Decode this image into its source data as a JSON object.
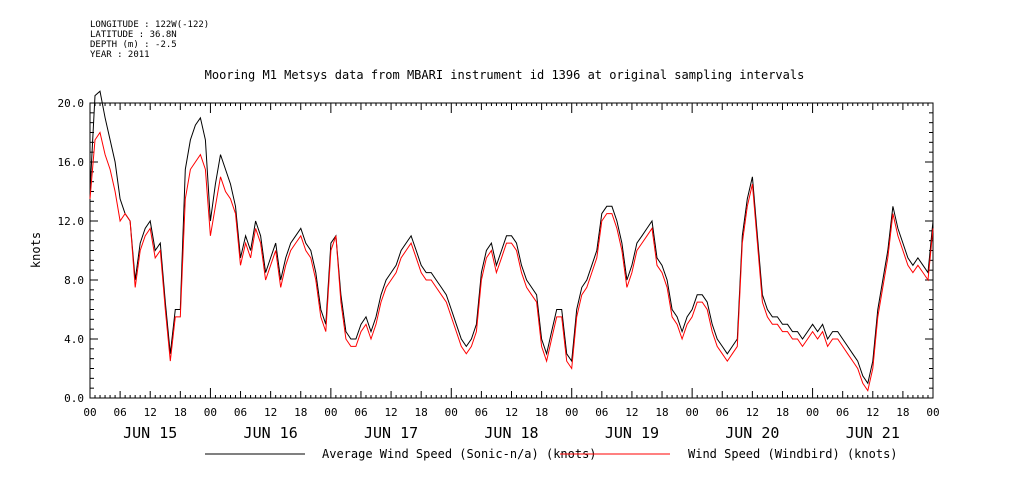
{
  "meta": {
    "longitude": "LONGITUDE : 122W(-122)",
    "latitude": "LATITUDE : 36.8N",
    "depth": "DEPTH (m) : -2.5",
    "year": "YEAR : 2011"
  },
  "chart_data": {
    "type": "line",
    "title": "Mooring M1 Metsys data from MBARI instrument id 1396 at original sampling intervals",
    "ylabel": "knots",
    "xlabel": "",
    "ylim": [
      0,
      20.0
    ],
    "xlim_hours": [
      0,
      168
    ],
    "yticks": [
      "0.0",
      "4.0",
      "8.0",
      "12.0",
      "16.0",
      "20.0"
    ],
    "xtick_hours": [
      "00",
      "06",
      "12",
      "18",
      "00",
      "06",
      "12",
      "18",
      "00",
      "06",
      "12",
      "18",
      "00",
      "06",
      "12",
      "18",
      "00",
      "06",
      "12",
      "18",
      "00",
      "06",
      "12",
      "18",
      "00",
      "06",
      "12",
      "18",
      "00"
    ],
    "days": [
      "JUN 15",
      "JUN 16",
      "JUN 17",
      "JUN 18",
      "JUN 19",
      "JUN 20",
      "JUN 21"
    ],
    "grid": false,
    "legend_position": "bottom",
    "series": [
      {
        "name": "Average Wind Speed (Sonic-n/a) (knots)",
        "color": "#000000",
        "x": [
          0,
          1,
          2,
          3,
          4,
          5,
          6,
          7,
          8,
          9,
          10,
          11,
          12,
          13,
          14,
          15,
          16,
          17,
          18,
          19,
          20,
          21,
          22,
          23,
          24,
          25,
          26,
          27,
          28,
          29,
          30,
          31,
          32,
          33,
          34,
          35,
          36,
          37,
          38,
          39,
          40,
          41,
          42,
          43,
          44,
          45,
          46,
          47,
          48,
          49,
          50,
          51,
          52,
          53,
          54,
          55,
          56,
          57,
          58,
          59,
          60,
          61,
          62,
          63,
          64,
          65,
          66,
          67,
          68,
          69,
          70,
          71,
          72,
          73,
          74,
          75,
          76,
          77,
          78,
          79,
          80,
          81,
          82,
          83,
          84,
          85,
          86,
          87,
          88,
          89,
          90,
          91,
          92,
          93,
          94,
          95,
          96,
          97,
          98,
          99,
          100,
          101,
          102,
          103,
          104,
          105,
          106,
          107,
          108,
          109,
          110,
          111,
          112,
          113,
          114,
          115,
          116,
          117,
          118,
          119,
          120,
          121,
          122,
          123,
          124,
          125,
          126,
          127,
          128,
          129,
          130,
          131,
          132,
          133,
          134,
          135,
          136,
          137,
          138,
          139,
          140,
          141,
          142,
          143,
          144,
          145,
          146,
          147,
          148,
          149,
          150,
          151,
          152,
          153,
          154,
          155,
          156,
          157,
          158,
          159,
          160,
          161,
          162,
          163,
          164,
          165,
          166,
          167,
          168
        ],
        "values": [
          14.0,
          20.5,
          20.8,
          19.0,
          17.5,
          16.0,
          13.5,
          12.5,
          12.0,
          8.0,
          10.5,
          11.5,
          12.0,
          10.0,
          10.5,
          6.5,
          3.0,
          6.0,
          6.0,
          15.5,
          17.5,
          18.5,
          19.0,
          17.5,
          12.0,
          14.5,
          16.5,
          15.5,
          14.5,
          13.0,
          9.5,
          11.0,
          10.0,
          12.0,
          11.0,
          8.5,
          9.5,
          10.5,
          8.0,
          9.5,
          10.5,
          11.0,
          11.5,
          10.5,
          10.0,
          8.5,
          6.0,
          5.0,
          10.5,
          11.0,
          7.0,
          4.5,
          4.0,
          4.0,
          5.0,
          5.5,
          4.5,
          5.5,
          7.0,
          8.0,
          8.5,
          9.0,
          10.0,
          10.5,
          11.0,
          10.0,
          9.0,
          8.5,
          8.5,
          8.0,
          7.5,
          7.0,
          6.0,
          5.0,
          4.0,
          3.5,
          4.0,
          5.0,
          8.5,
          10.0,
          10.5,
          9.0,
          10.0,
          11.0,
          11.0,
          10.5,
          9.0,
          8.0,
          7.5,
          7.0,
          4.0,
          3.0,
          4.5,
          6.0,
          6.0,
          3.0,
          2.5,
          6.0,
          7.5,
          8.0,
          9.0,
          10.0,
          12.5,
          13.0,
          13.0,
          12.0,
          10.5,
          8.0,
          9.0,
          10.5,
          11.0,
          11.5,
          12.0,
          9.5,
          9.0,
          8.0,
          6.0,
          5.5,
          4.5,
          5.5,
          6.0,
          7.0,
          7.0,
          6.5,
          5.0,
          4.0,
          3.5,
          3.0,
          3.5,
          4.0,
          11.0,
          13.5,
          15.0,
          11.0,
          7.0,
          6.0,
          5.5,
          5.5,
          5.0,
          5.0,
          4.5,
          4.5,
          4.0,
          4.5,
          5.0,
          4.5,
          5.0,
          4.0,
          4.5,
          4.5,
          4.0,
          3.5,
          3.0,
          2.5,
          1.5,
          1.0,
          2.5,
          6.0,
          8.0,
          10.0,
          13.0,
          11.5,
          10.5,
          9.5,
          9.0,
          9.5,
          9.0,
          8.5,
          12.0
        ]
      },
      {
        "name": "Wind Speed (Windbird) (knots)",
        "color": "#ff0000",
        "x": [
          0,
          1,
          2,
          3,
          4,
          5,
          6,
          7,
          8,
          9,
          10,
          11,
          12,
          13,
          14,
          15,
          16,
          17,
          18,
          19,
          20,
          21,
          22,
          23,
          24,
          25,
          26,
          27,
          28,
          29,
          30,
          31,
          32,
          33,
          34,
          35,
          36,
          37,
          38,
          39,
          40,
          41,
          42,
          43,
          44,
          45,
          46,
          47,
          48,
          49,
          50,
          51,
          52,
          53,
          54,
          55,
          56,
          57,
          58,
          59,
          60,
          61,
          62,
          63,
          64,
          65,
          66,
          67,
          68,
          69,
          70,
          71,
          72,
          73,
          74,
          75,
          76,
          77,
          78,
          79,
          80,
          81,
          82,
          83,
          84,
          85,
          86,
          87,
          88,
          89,
          90,
          91,
          92,
          93,
          94,
          95,
          96,
          97,
          98,
          99,
          100,
          101,
          102,
          103,
          104,
          105,
          106,
          107,
          108,
          109,
          110,
          111,
          112,
          113,
          114,
          115,
          116,
          117,
          118,
          119,
          120,
          121,
          122,
          123,
          124,
          125,
          126,
          127,
          128,
          129,
          130,
          131,
          132,
          133,
          134,
          135,
          136,
          137,
          138,
          139,
          140,
          141,
          142,
          143,
          144,
          145,
          146,
          147,
          148,
          149,
          150,
          151,
          152,
          153,
          154,
          155,
          156,
          157,
          158,
          159,
          160,
          161,
          162,
          163,
          164,
          165,
          166,
          167,
          168
        ],
        "values": [
          13.5,
          17.5,
          18.0,
          16.5,
          15.5,
          14.0,
          12.0,
          12.5,
          12.0,
          7.5,
          10.0,
          11.0,
          11.5,
          9.5,
          10.0,
          6.0,
          2.5,
          5.5,
          5.5,
          13.5,
          15.5,
          16.0,
          16.5,
          15.5,
          11.0,
          13.0,
          15.0,
          14.0,
          13.5,
          12.5,
          9.0,
          10.5,
          9.5,
          11.5,
          10.5,
          8.0,
          9.0,
          10.0,
          7.5,
          9.0,
          10.0,
          10.5,
          11.0,
          10.0,
          9.5,
          8.0,
          5.5,
          4.5,
          10.0,
          11.0,
          6.5,
          4.0,
          3.5,
          3.5,
          4.5,
          5.0,
          4.0,
          5.0,
          6.5,
          7.5,
          8.0,
          8.5,
          9.5,
          10.0,
          10.5,
          9.5,
          8.5,
          8.0,
          8.0,
          7.5,
          7.0,
          6.5,
          5.5,
          4.5,
          3.5,
          3.0,
          3.5,
          4.5,
          8.0,
          9.5,
          10.0,
          8.5,
          9.5,
          10.5,
          10.5,
          10.0,
          8.5,
          7.5,
          7.0,
          6.5,
          3.5,
          2.5,
          4.0,
          5.5,
          5.5,
          2.5,
          2.0,
          5.5,
          7.0,
          7.5,
          8.5,
          9.5,
          12.0,
          12.5,
          12.5,
          11.5,
          10.0,
          7.5,
          8.5,
          10.0,
          10.5,
          11.0,
          11.5,
          9.0,
          8.5,
          7.5,
          5.5,
          5.0,
          4.0,
          5.0,
          5.5,
          6.5,
          6.5,
          6.0,
          4.5,
          3.5,
          3.0,
          2.5,
          3.0,
          3.5,
          10.5,
          13.0,
          14.5,
          10.5,
          6.5,
          5.5,
          5.0,
          5.0,
          4.5,
          4.5,
          4.0,
          4.0,
          3.5,
          4.0,
          4.5,
          4.0,
          4.5,
          3.5,
          4.0,
          4.0,
          3.5,
          3.0,
          2.5,
          2.0,
          1.0,
          0.5,
          2.0,
          5.5,
          7.5,
          9.5,
          12.5,
          11.0,
          10.0,
          9.0,
          8.5,
          9.0,
          8.5,
          8.0,
          11.5
        ]
      }
    ]
  }
}
